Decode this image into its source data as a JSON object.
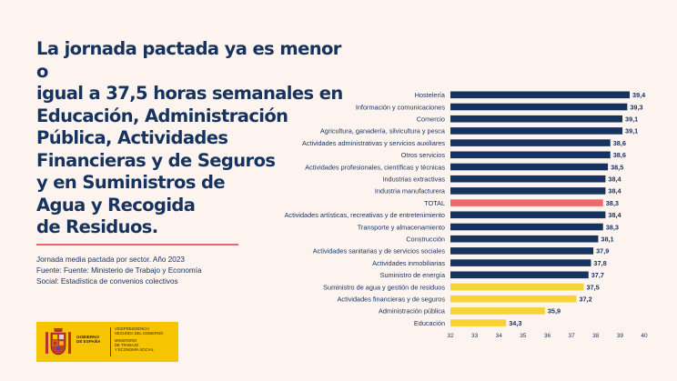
{
  "headline": [
    "La jornada pactada ya es menor o",
    "igual a 37,5 horas semanales en",
    "Educación, Administración",
    "Pública, Actividades",
    "Financieras y de Seguros",
    "y en Suministros de",
    "Agua y Recogida",
    "de Residuos."
  ],
  "notes": {
    "line1": "Jornada media pactada por sector. Año 2023",
    "line2": "Fuente: Fuente: Ministerio de Trabajo y Economía",
    "line3": "Social: Estadística de convenios colectivos"
  },
  "logo": {
    "gov_line1": "GOBIERNO",
    "gov_line2": "DE ESPAÑA",
    "vp_line1": "VICEPRESIDENCIA",
    "vp_line2": "SEGUNDA DEL GOBIERNO",
    "min_line1": "MINISTERIO",
    "min_line2": "DE TRABAJO",
    "min_line3": "Y ECONOMÍA SOCIAL"
  },
  "colors": {
    "navy": "#15335e",
    "total": "#ea6a6d",
    "highlight": "#f7d335",
    "background": "#fdf3ef"
  },
  "chart_data": {
    "type": "bar",
    "orientation": "horizontal",
    "categories": [
      "Hostelería",
      "Información y comunicaciones",
      "Comercio",
      "Agricultura, ganadería, silvicultura y pesca",
      "Actividades administrativas y servicios auxiliares",
      "Otros servicios",
      "Actividades profesionales, científicas y técnicas",
      "Industrias extractivas",
      "Industria manufacturera",
      "TOTAL",
      "Actividades artísticas, recreativas y de entretenimiento",
      "Transporte y almacenamiento",
      "Construcción",
      "Actividades sanitarias y de servicios sociales",
      "Actividades inmobiliarias",
      "Suministro de energía",
      "Suministro de agua y gestión de residuos",
      "Actividades financieras y de seguros",
      "Administración pública",
      "Educación"
    ],
    "values": [
      39.4,
      39.3,
      39.1,
      39.1,
      38.6,
      38.6,
      38.5,
      38.4,
      38.4,
      38.3,
      38.4,
      38.3,
      38.1,
      37.9,
      37.8,
      37.7,
      37.5,
      37.2,
      35.9,
      34.3
    ],
    "value_labels": [
      "39,4",
      "39,3",
      "39,1",
      "39,1",
      "38,6",
      "38,6",
      "38,5",
      "38,4",
      "38,4",
      "38,3",
      "38,4",
      "38,3",
      "38,1",
      "37,9",
      "37,8",
      "37,7",
      "37,5",
      "37,2",
      "35,9",
      "34,3"
    ],
    "bar_colors": [
      "#15335e",
      "#15335e",
      "#15335e",
      "#15335e",
      "#15335e",
      "#15335e",
      "#15335e",
      "#15335e",
      "#15335e",
      "#ea6a6d",
      "#15335e",
      "#15335e",
      "#15335e",
      "#15335e",
      "#15335e",
      "#15335e",
      "#f7d335",
      "#f7d335",
      "#f7d335",
      "#f7d335"
    ],
    "xlim": [
      32,
      40
    ],
    "xticks": [
      32,
      33,
      34,
      35,
      36,
      37,
      38,
      39,
      40
    ],
    "grid": false,
    "legend": "none"
  }
}
